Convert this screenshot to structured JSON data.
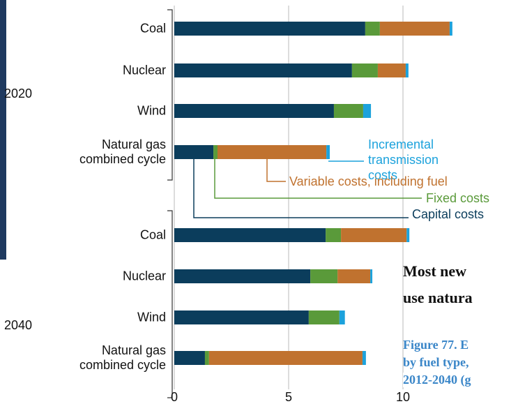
{
  "chart_data": {
    "type": "bar",
    "orientation": "horizontal",
    "stacked": true,
    "groups": [
      "2020",
      "2040"
    ],
    "categories": [
      "Coal",
      "Nuclear",
      "Wind",
      "Natural gas combined cycle",
      "Coal",
      "Nuclear",
      "Wind",
      "Natural gas combined cycle"
    ],
    "series": [
      {
        "name": "Capital costs",
        "color": "#0b3d5c",
        "values": [
          8.35,
          7.77,
          6.98,
          1.71,
          6.62,
          5.95,
          5.88,
          1.34
        ]
      },
      {
        "name": "Fixed costs",
        "color": "#5a9a3a",
        "values": [
          0.64,
          1.13,
          1.28,
          0.18,
          0.67,
          1.19,
          1.34,
          0.18
        ]
      },
      {
        "name": "Variable costs, including fuel",
        "color": "#c0722f",
        "values": [
          3.05,
          1.22,
          0,
          4.76,
          2.87,
          1.43,
          0,
          6.71
        ]
      },
      {
        "name": "Incremental transmission costs",
        "color": "#1ca2dc",
        "values": [
          0.12,
          0.12,
          0.34,
          0.15,
          0.12,
          0.09,
          0.24,
          0.15
        ]
      }
    ],
    "xlim": [
      0,
      15
    ],
    "xticks": [
      0,
      5,
      10
    ],
    "grid": true
  },
  "page_text": [
    "Most new",
    "use natura",
    "Figure 77. E",
    "by fuel type,",
    "2012-2040 (g"
  ]
}
